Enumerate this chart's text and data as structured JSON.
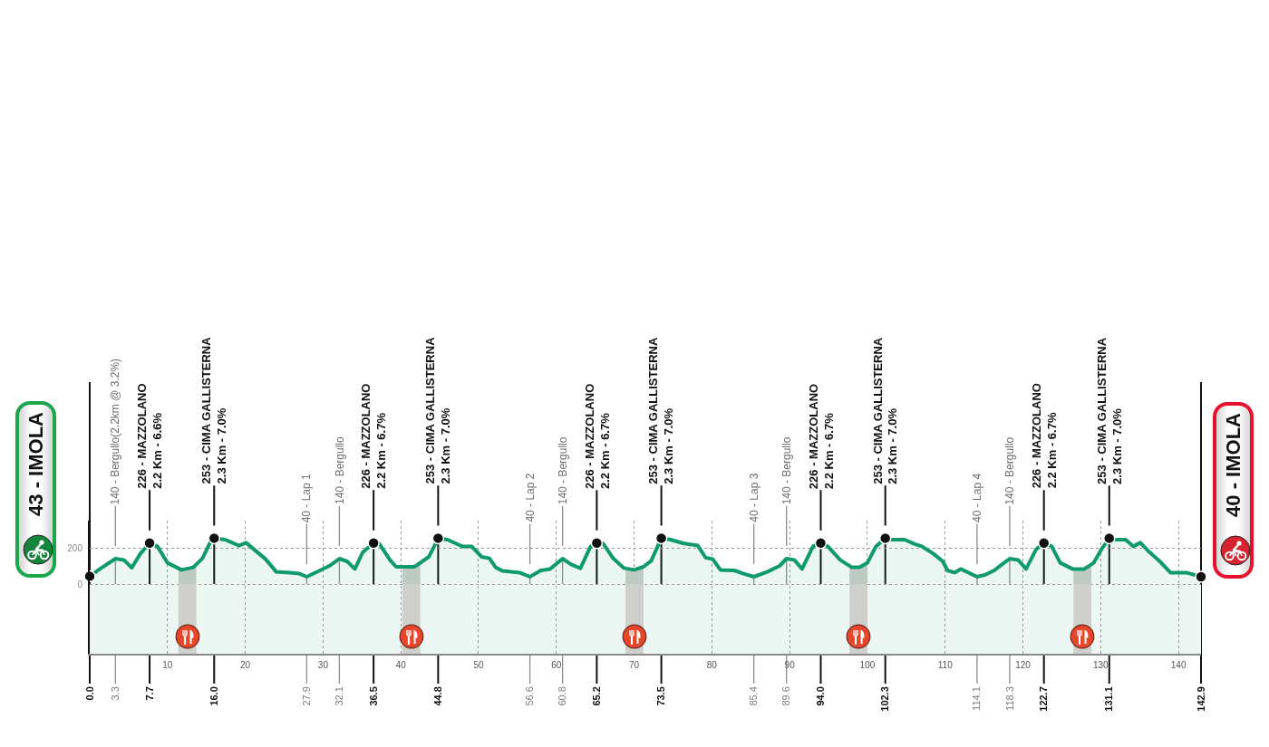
{
  "chart_data": {
    "type": "area",
    "x": [
      0,
      1.3,
      3.3,
      4.4,
      5.4,
      6.5,
      7.7,
      8.7,
      10.0,
      11.8,
      13.3,
      14.5,
      15.6,
      16.0,
      17.4,
      19.2,
      20.1,
      21.1,
      22.6,
      24.0,
      25.8,
      26.9,
      27.9,
      29.6,
      30.8,
      32.1,
      33.1,
      34.1,
      35.1,
      36.5,
      37.2,
      38.6,
      39.4,
      41.7,
      42.1,
      43.6,
      44.2,
      44.8,
      46.0,
      47.9,
      49.1,
      50.4,
      51.4,
      52.2,
      53.1,
      55.3,
      56.6,
      58.0,
      59.2,
      60.8,
      61.9,
      63.1,
      64.4,
      65.2,
      66.0,
      67.3,
      68.7,
      70.0,
      71.2,
      72.2,
      73.5,
      74.7,
      76.3,
      78.2,
      79.2,
      80.1,
      81.1,
      82.9,
      84.0,
      85.4,
      87.1,
      88.7,
      89.6,
      90.6,
      91.6,
      93.0,
      94.0,
      94.9,
      96.5,
      98.0,
      99.0,
      100.0,
      101.1,
      102.3,
      103.1,
      104.8,
      106.0,
      107.0,
      108.5,
      109.7,
      110.3,
      111.2,
      112.0,
      112.8,
      114.1,
      115.1,
      116.3,
      117.3,
      118.3,
      119.4,
      120.4,
      121.7,
      122.7,
      123.7,
      124.8,
      126.4,
      127.9,
      129.1,
      130.1,
      131.1,
      131.8,
      133.2,
      134.2,
      135.1,
      136.1,
      137.6,
      139.0,
      141.1,
      142.1,
      142.9
    ],
    "series": [
      {
        "color": "#0e9a6c",
        "values": [
          43,
          83,
          140,
          133,
          90,
          167,
          226,
          208,
          117,
          78,
          92,
          142,
          240,
          253,
          245,
          212,
          228,
          192,
          138,
          67,
          62,
          58,
          40,
          75,
          100,
          140,
          125,
          83,
          175,
          226,
          225,
          133,
          95,
          95,
          105,
          150,
          200,
          253,
          245,
          208,
          208,
          150,
          142,
          92,
          72,
          63,
          40,
          75,
          83,
          140,
          108,
          87,
          208,
          226,
          225,
          142,
          88,
          78,
          95,
          128,
          253,
          245,
          225,
          212,
          145,
          138,
          78,
          75,
          58,
          40,
          67,
          100,
          140,
          133,
          83,
          208,
          226,
          208,
          133,
          92,
          92,
          117,
          208,
          253,
          245,
          245,
          222,
          208,
          167,
          125,
          75,
          63,
          83,
          67,
          40,
          50,
          75,
          108,
          140,
          133,
          83,
          192,
          226,
          208,
          117,
          83,
          83,
          117,
          192,
          253,
          245,
          245,
          208,
          228,
          183,
          125,
          62,
          62,
          50,
          40
        ]
      },
      {
        "type": "scatter",
        "color": "#111111",
        "marker": "circle",
        "x": [
          0,
          7.7,
          16.0,
          36.5,
          44.8,
          65.2,
          73.5,
          94.0,
          102.3,
          122.7,
          131.1,
          142.9
        ],
        "values": [
          43,
          226,
          253,
          226,
          253,
          226,
          253,
          226,
          253,
          226,
          253,
          40
        ]
      }
    ],
    "xlim": [
      0,
      142.9
    ],
    "xticks": [
      10,
      20,
      30,
      40,
      50,
      60,
      70,
      80,
      90,
      100,
      110,
      120,
      130,
      140
    ],
    "ylim": [
      -385,
      350
    ],
    "yticks": [
      0,
      200
    ],
    "x2lim": [
      0,
      142.9
    ],
    "x2ticks": [
      {
        "value": 0,
        "label": "0.0"
      },
      3.3,
      7.7,
      {
        "value": 16,
        "label": "16.0"
      },
      27.9,
      32.1,
      36.5,
      44.8,
      56.6,
      60.8,
      65.2,
      73.5,
      85.4,
      89.6,
      {
        "value": 94,
        "label": "94.0"
      },
      102.3,
      114.1,
      118.3,
      122.7,
      131.1,
      142.9
    ],
    "grid": true,
    "bands": [
      {
        "axis": "y",
        "from": -385,
        "to": 0,
        "color": "#ecf7f3"
      },
      {
        "axis": "x",
        "from": 11.4,
        "to": 13.7,
        "color": "#cfcfcb"
      },
      {
        "axis": "x",
        "from": 40.2,
        "to": 42.5,
        "color": "#cfcfcb"
      },
      {
        "axis": "x",
        "from": 68.9,
        "to": 71.2,
        "color": "#cfcfcb"
      },
      {
        "axis": "x",
        "from": 97.7,
        "to": 100.0,
        "color": "#cfcfcb"
      },
      {
        "axis": "x",
        "from": 126.5,
        "to": 128.8,
        "color": "#cfcfcb"
      }
    ],
    "annotations": [
      "43 - IMOLA",
      {
        "text": "140 - Bergullo(2.2km @ 3.2%)",
        "x": 3.3,
        "y": 140
      },
      {
        "text": "226 - MAZZOLANO\n2.2 Km - 6.6%",
        "x": 7.7,
        "y": 226
      },
      {
        "text": "253 - CIMA GALLISTERNA\n2.3 Km - 7.0%",
        "x": 16.0,
        "y": 253
      },
      {
        "text": "40 - Lap 1",
        "x": 27.9,
        "y": 40
      },
      {
        "text": "140 - Bergullo",
        "x": 32.1,
        "y": 140
      },
      {
        "text": "226 - MAZZOLANO\n2.2 Km - 6.7%",
        "x": 36.5,
        "y": 226
      },
      {
        "text": "253 - CIMA GALLISTERNA\n2.3 Km - 7.0%",
        "x": 44.8,
        "y": 253
      },
      {
        "text": "40 - Lap 2",
        "x": 56.6,
        "y": 40
      },
      {
        "text": "140 - Bergullo",
        "x": 60.8,
        "y": 140
      },
      {
        "text": "226 - MAZZOLANO\n2.2 Km - 6.7%",
        "x": 65.2,
        "y": 226
      },
      {
        "text": "253 - CIMA GALLISTERNA\n2.3 Km - 7.0%",
        "x": 73.5,
        "y": 253
      },
      {
        "text": "40 - Lap 3",
        "x": 85.4,
        "y": 40
      },
      {
        "text": "140 - Bergullo",
        "x": 89.6,
        "y": 140
      },
      {
        "text": "226 - MAZZOLANO\n2.2 Km - 6.7%",
        "x": 94.0,
        "y": 226
      },
      {
        "text": "253 - CIMA GALLISTERNA\n2.3 Km - 7.0%",
        "x": 102.3,
        "y": 253
      },
      {
        "text": "40 - Lap 4",
        "x": 114.1,
        "y": 40
      },
      {
        "text": "140 - Bergullo",
        "x": 118.3,
        "y": 140
      },
      {
        "text": "226 - MAZZOLANO\n2.2 Km - 6.7%",
        "x": 122.7,
        "y": 226
      },
      {
        "text": "253 - CIMA GALLISTERNA\n2.3 Km - 7.0%",
        "x": 131.1,
        "y": 253
      },
      "40 - IMOLA"
    ]
  }
}
